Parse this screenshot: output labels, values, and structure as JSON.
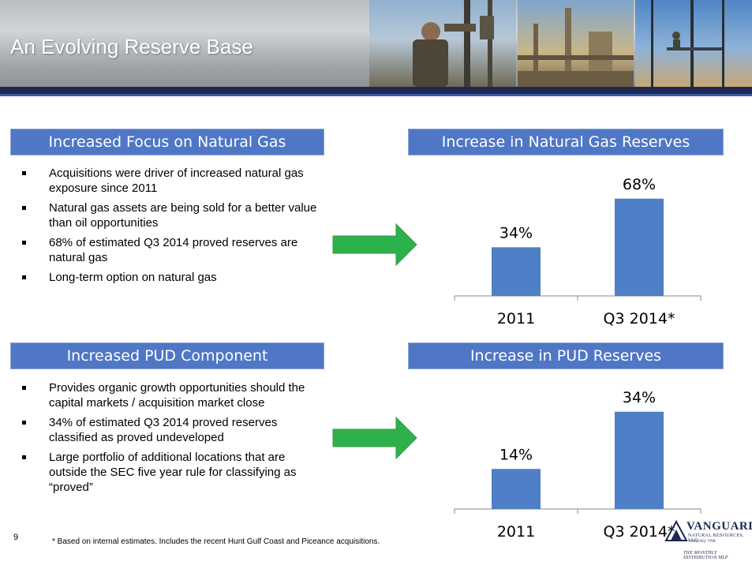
{
  "header": {
    "title": "An Evolving Reserve Base"
  },
  "sections": {
    "natural_gas_focus": {
      "title": "Increased Focus on Natural Gas",
      "bullets": [
        "Acquisitions were driver of increased natural gas exposure since 2011",
        "Natural gas assets are being sold for a better value than oil opportunities",
        "68% of estimated Q3 2014 proved reserves are natural gas",
        "Long-term option on natural gas"
      ]
    },
    "natural_gas_reserves": {
      "title": "Increase in Natural Gas Reserves"
    },
    "pud_component": {
      "title": "Increased PUD Component",
      "bullets": [
        "Provides organic growth opportunities should the capital markets / acquisition market close",
        "34% of estimated Q3 2014 proved reserves classified as proved undeveloped",
        "Large portfolio of additional locations that are outside the SEC five year rule for classifying as “proved”"
      ]
    },
    "pud_reserves": {
      "title": "Increase in PUD Reserves"
    }
  },
  "chart_data": [
    {
      "type": "bar",
      "categories": [
        "2011",
        "Q3 2014*"
      ],
      "values": [
        34,
        68
      ],
      "value_labels": [
        "34%",
        "68%"
      ],
      "ylim": [
        0,
        80
      ],
      "grid": false
    },
    {
      "type": "bar",
      "categories": [
        "2011",
        "Q3 2014*"
      ],
      "values": [
        14,
        34
      ],
      "value_labels": [
        "14%",
        "34%"
      ],
      "ylim": [
        0,
        40
      ],
      "grid": false
    }
  ],
  "footer": {
    "page_number": "9",
    "footnote": "* Based on internal estimates. Includes the recent Hunt Gulf Coast and Piceance acquisitions."
  },
  "logo": {
    "name": "VANGUARD",
    "subtitle": "NATURAL RESOURCES, LLC",
    "ticker": "NASDAQ: VNR",
    "tagline": "THE MONTHLY DISTRIBUTION MLP"
  },
  "colors": {
    "section_header": "#4f77c6",
    "bar": "#4f7fc6",
    "arrow": "#2db14a",
    "header_band": "#1f2a52"
  }
}
